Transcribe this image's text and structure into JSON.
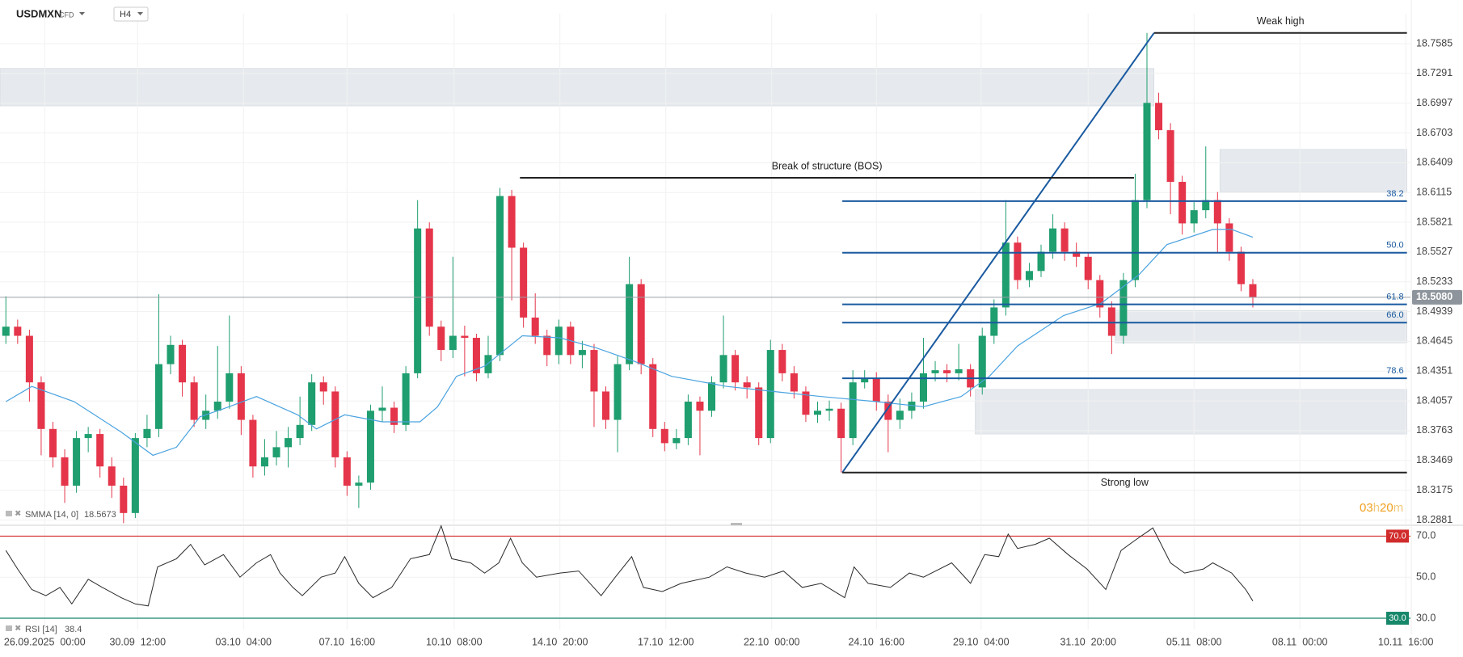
{
  "chart_data": [
    {
      "type": "candlestick",
      "symbol": "USDMXN",
      "instrument": "CFD",
      "timeframe": "H4",
      "xlim": [
        -0.5,
        119.4
      ],
      "xticks": [
        {
          "value": 3.3,
          "label": "26.09.2025  00:00"
        },
        {
          "value": 11.2,
          "label": "30.09  12:00"
        },
        {
          "value": 20.2,
          "label": "03.10  04:00"
        },
        {
          "value": 29.0,
          "label": "07.10  16:00"
        },
        {
          "value": 38.1,
          "label": "10.10  08:00"
        },
        {
          "value": 47.1,
          "label": "14.10  20:00"
        },
        {
          "value": 56.1,
          "label": "17.10  12:00"
        },
        {
          "value": 65.1,
          "label": "22.10  00:00"
        },
        {
          "value": 74.0,
          "label": "24.10  16:00"
        },
        {
          "value": 82.9,
          "label": "29.10  04:00"
        },
        {
          "value": 92.0,
          "label": "31.10  20:00"
        },
        {
          "value": 101.0,
          "label": "05.11  08:00"
        },
        {
          "value": 110.0,
          "label": "08.11  00:00"
        },
        {
          "value": 119.0,
          "label": "10.11  16:00"
        }
      ],
      "ylim": [
        18.2837,
        18.788
      ],
      "yticks": [
        18.7585,
        18.7291,
        18.6997,
        18.6703,
        18.6409,
        18.6115,
        18.5821,
        18.5527,
        18.5233,
        18.4939,
        18.4645,
        18.4351,
        18.4057,
        18.3763,
        18.3469,
        18.3175,
        18.2881
      ],
      "grid": true,
      "up_color": "#1f9e6f",
      "down_color": "#e5354a",
      "open": [
        18.47,
        18.479,
        18.47,
        18.424,
        18.378,
        18.35,
        18.322,
        18.369,
        18.373,
        18.341,
        18.322,
        18.295,
        18.369,
        18.378,
        18.442,
        18.461,
        18.424,
        18.387,
        18.396,
        18.405,
        18.433,
        18.387,
        18.341,
        18.35,
        18.36,
        18.369,
        18.382,
        18.424,
        18.415,
        18.35,
        18.322,
        18.325,
        18.396,
        18.399,
        18.382,
        18.433,
        18.576,
        18.479,
        18.456,
        18.47,
        18.468,
        18.433,
        18.451,
        18.608,
        18.557,
        18.488,
        18.47,
        18.451,
        18.479,
        18.451,
        18.456,
        18.415,
        18.387,
        18.442,
        18.521,
        18.442,
        18.378,
        18.364,
        18.369,
        18.405,
        18.396,
        18.424,
        18.451,
        18.424,
        18.419,
        18.369,
        18.456,
        18.433,
        18.415,
        18.392,
        18.396,
        18.398,
        18.369,
        18.424,
        18.428,
        18.405,
        18.387,
        18.396,
        18.405,
        18.433,
        18.436,
        18.433,
        18.437,
        18.419,
        18.47,
        18.498,
        18.562,
        18.525,
        18.534,
        18.553,
        18.576,
        18.553,
        18.548,
        18.525,
        18.498,
        18.47,
        18.525,
        18.604,
        18.7,
        18.673,
        18.622,
        18.581,
        18.594,
        18.604,
        18.581,
        18.553,
        18.521
      ],
      "high": [
        18.509,
        18.486,
        18.476,
        18.43,
        18.385,
        18.358,
        18.376,
        18.38,
        18.378,
        18.35,
        18.33,
        18.374,
        18.392,
        18.511,
        18.47,
        18.466,
        18.43,
        18.412,
        18.46,
        18.49,
        18.44,
        18.392,
        18.368,
        18.376,
        18.38,
        18.41,
        18.432,
        18.43,
        18.42,
        18.356,
        18.332,
        18.402,
        18.42,
        18.405,
        18.44,
        18.604,
        18.582,
        18.485,
        18.548,
        18.48,
        18.472,
        18.47,
        18.616,
        18.614,
        18.562,
        18.512,
        18.476,
        18.486,
        18.484,
        18.465,
        18.462,
        18.42,
        18.45,
        18.548,
        18.526,
        18.448,
        18.385,
        18.378,
        18.412,
        18.41,
        18.43,
        18.49,
        18.456,
        18.43,
        18.424,
        18.466,
        18.462,
        18.44,
        18.42,
        18.405,
        18.406,
        18.404,
        18.436,
        18.436,
        18.434,
        18.412,
        18.408,
        18.414,
        18.468,
        18.445,
        18.442,
        18.462,
        18.442,
        18.478,
        18.506,
        18.604,
        18.568,
        18.542,
        18.56,
        18.59,
        18.582,
        18.562,
        18.552,
        18.53,
        18.504,
        18.532,
        18.63,
        18.769,
        18.71,
        18.68,
        18.628,
        18.602,
        18.657,
        18.612,
        18.586,
        18.558,
        18.526
      ],
      "low": [
        18.462,
        18.462,
        18.405,
        18.352,
        18.34,
        18.305,
        18.315,
        18.355,
        18.33,
        18.31,
        18.285,
        18.29,
        18.36,
        18.37,
        18.432,
        18.41,
        18.38,
        18.378,
        18.388,
        18.398,
        18.372,
        18.33,
        18.332,
        18.342,
        18.34,
        18.362,
        18.376,
        18.402,
        18.34,
        18.312,
        18.3,
        18.318,
        18.385,
        18.374,
        18.376,
        18.428,
        18.47,
        18.445,
        18.448,
        18.43,
        18.425,
        18.428,
        18.445,
        18.505,
        18.478,
        18.462,
        18.44,
        18.442,
        18.442,
        18.438,
        18.38,
        18.378,
        18.355,
        18.436,
        18.432,
        18.37,
        18.356,
        18.358,
        18.362,
        18.352,
        18.39,
        18.418,
        18.416,
        18.408,
        18.362,
        18.364,
        18.425,
        18.408,
        18.385,
        18.384,
        18.386,
        18.335,
        18.362,
        18.418,
        18.396,
        18.355,
        18.378,
        18.388,
        18.398,
        18.425,
        18.424,
        18.426,
        18.41,
        18.412,
        18.462,
        18.49,
        18.516,
        18.518,
        18.528,
        18.546,
        18.544,
        18.538,
        18.516,
        18.488,
        18.452,
        18.462,
        18.518,
        18.596,
        18.664,
        18.59,
        18.57,
        18.572,
        18.586,
        18.552,
        18.544,
        18.514,
        18.498
      ],
      "close": [
        18.479,
        18.47,
        18.424,
        18.378,
        18.35,
        18.322,
        18.369,
        18.373,
        18.341,
        18.322,
        18.295,
        18.369,
        18.378,
        18.442,
        18.461,
        18.424,
        18.387,
        18.396,
        18.405,
        18.433,
        18.387,
        18.341,
        18.35,
        18.36,
        18.369,
        18.382,
        18.424,
        18.415,
        18.35,
        18.322,
        18.325,
        18.396,
        18.399,
        18.382,
        18.433,
        18.576,
        18.479,
        18.456,
        18.47,
        18.468,
        18.433,
        18.451,
        18.608,
        18.557,
        18.488,
        18.47,
        18.451,
        18.479,
        18.451,
        18.456,
        18.415,
        18.387,
        18.442,
        18.521,
        18.442,
        18.378,
        18.364,
        18.369,
        18.405,
        18.396,
        18.424,
        18.451,
        18.424,
        18.419,
        18.369,
        18.456,
        18.433,
        18.415,
        18.392,
        18.396,
        18.398,
        18.369,
        18.424,
        18.428,
        18.405,
        18.387,
        18.396,
        18.405,
        18.433,
        18.436,
        18.433,
        18.437,
        18.419,
        18.47,
        18.498,
        18.562,
        18.525,
        18.534,
        18.553,
        18.576,
        18.553,
        18.548,
        18.525,
        18.498,
        18.47,
        18.525,
        18.604,
        18.7,
        18.673,
        18.622,
        18.581,
        18.594,
        18.604,
        18.581,
        18.553,
        18.521,
        18.508
      ],
      "smma": {
        "name": "SMMA [14, 0]",
        "color": "#4aa3e0",
        "x": [
          0,
          2.2,
          5.8,
          9.8,
          12.5,
          14.5,
          16.5,
          18.5,
          21.3,
          24.8,
          26.4,
          28.8,
          32,
          35.2,
          36.7,
          38.3,
          40.7,
          43.9,
          47.1,
          50.2,
          53.4,
          56.6,
          61.3,
          65.3,
          69.3,
          74,
          78,
          81.2,
          83.6,
          86,
          89.9,
          93.1,
          96.3,
          98.7,
          102.6,
          104.2,
          106
        ],
        "values": [
          18.405,
          18.42,
          18.405,
          18.375,
          18.352,
          18.36,
          18.39,
          18.398,
          18.41,
          18.392,
          18.378,
          18.392,
          18.385,
          18.385,
          18.4,
          18.43,
          18.44,
          18.47,
          18.468,
          18.458,
          18.445,
          18.43,
          18.42,
          18.415,
          18.41,
          18.405,
          18.4,
          18.41,
          18.43,
          18.46,
          18.49,
          18.502,
          18.53,
          18.56,
          18.575,
          18.575,
          18.5673
        ]
      },
      "zone_color": "#e6eaee",
      "zones": [
        {
          "x": [
            -0.5,
            97.6
          ],
          "y": [
            18.697,
            18.734
          ]
        },
        {
          "x": [
            103.2,
            119.1
          ],
          "y": [
            18.612,
            18.654
          ]
        },
        {
          "x": [
            94.3,
            119.1
          ],
          "y": [
            18.463,
            18.495
          ]
        },
        {
          "x": [
            82.4,
            119.1
          ],
          "y": [
            18.373,
            18.417
          ]
        }
      ],
      "levels": [
        {
          "label": "Weak high",
          "price": 18.769,
          "x": [
            97.6,
            119.1
          ],
          "label_side": "above"
        },
        {
          "label": "Break of structure (BOS)",
          "price": 18.626,
          "x": [
            43.7,
            95.9
          ],
          "label_side": "above"
        },
        {
          "label": "Strong low",
          "price": 18.335,
          "x": [
            71.1,
            119.1
          ],
          "label_side": "below"
        }
      ],
      "fib": {
        "color": "#1a5aa0",
        "start": {
          "x": 71.1,
          "price": 18.335
        },
        "end": {
          "x": 97.6,
          "price": 18.769
        },
        "x_end": 119.1,
        "levels": [
          {
            "label": "38.2",
            "price": 18.603
          },
          {
            "label": "50.0",
            "price": 18.552
          },
          {
            "label": "61.8",
            "price": 18.501
          },
          {
            "label": "66.0",
            "price": 18.483
          },
          {
            "label": "78.6",
            "price": 18.428
          }
        ]
      },
      "current_price": {
        "value": 18.508,
        "label": "18.5080"
      },
      "countdown": [
        "03",
        "h",
        "20",
        "m"
      ]
    },
    {
      "type": "line",
      "name": "RSI [14]",
      "color": "#2b2b2b",
      "xlim": [
        -0.5,
        119.4
      ],
      "ylim": [
        24.5,
        74.5
      ],
      "yticks": [
        {
          "value": 70,
          "label": "70.0"
        },
        {
          "value": 50,
          "label": "50.0"
        },
        {
          "value": 30,
          "label": "30.0"
        }
      ],
      "bands": [
        {
          "value": 70,
          "color": "#d12b2b"
        },
        {
          "value": 30,
          "color": "#17876a"
        }
      ],
      "x": [
        0,
        1,
        2.2,
        3.4,
        4.6,
        5.6,
        7,
        8.2,
        9.8,
        11,
        12.1,
        12.9,
        14.5,
        15.7,
        16.9,
        18.5,
        19.9,
        21.3,
        22.5,
        23.3,
        24.4,
        25.2,
        26.8,
        28,
        28.8,
        30,
        31.2,
        32.8,
        34.4,
        36,
        37,
        37.9,
        39.5,
        40.7,
        41.9,
        42.9,
        43.9,
        45.1,
        47.1,
        48.7,
        50.6,
        51.8,
        53.2,
        54.2,
        55.8,
        57.4,
        59.8,
        61.3,
        62.9,
        64.5,
        66.1,
        67.7,
        69.3,
        71.3,
        72.1,
        73.3,
        75.2,
        76.8,
        78,
        80.4,
        82,
        83.2,
        84.4,
        85.2,
        86,
        87.5,
        88.7,
        90.3,
        91.9,
        93.5,
        94.8,
        96,
        97.5,
        99,
        100.2,
        101.8,
        102.6,
        104.2,
        105.4,
        106
      ],
      "values": [
        63,
        54,
        44,
        41,
        45,
        37,
        49,
        45,
        40,
        37,
        36,
        55,
        59,
        66,
        56,
        61,
        50,
        57,
        61,
        52,
        45,
        41,
        50,
        52,
        60,
        47,
        40,
        45,
        59,
        61,
        75,
        59,
        57,
        52,
        57,
        69,
        57,
        50,
        52,
        53,
        41,
        50,
        60,
        45,
        43,
        47,
        50,
        55,
        52,
        50,
        53,
        45,
        47,
        40,
        55,
        47,
        45,
        52,
        50,
        57,
        47,
        61,
        60,
        71,
        64,
        66,
        69,
        61,
        54,
        44,
        63,
        68,
        74,
        57,
        52,
        54,
        57,
        52,
        44,
        38.4
      ]
    }
  ]
}
